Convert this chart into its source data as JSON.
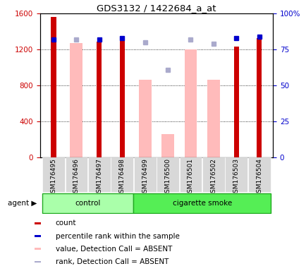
{
  "title": "GDS3132 / 1422684_a_at",
  "samples": [
    "GSM176495",
    "GSM176496",
    "GSM176497",
    "GSM176498",
    "GSM176499",
    "GSM176500",
    "GSM176501",
    "GSM176502",
    "GSM176503",
    "GSM176504"
  ],
  "count_values": [
    1560,
    null,
    1290,
    1330,
    null,
    null,
    null,
    null,
    1235,
    1330
  ],
  "absent_value_values": [
    null,
    1270,
    null,
    null,
    860,
    260,
    1200,
    860,
    null,
    null
  ],
  "percentile_rank_values": [
    82,
    null,
    82,
    83,
    null,
    null,
    null,
    null,
    83,
    84
  ],
  "absent_rank_values": [
    null,
    82,
    null,
    null,
    80,
    61,
    82,
    79,
    null,
    null
  ],
  "ylim_left": [
    0,
    1600
  ],
  "ylim_right": [
    0,
    100
  ],
  "yticks_left": [
    0,
    400,
    800,
    1200,
    1600
  ],
  "yticks_right": [
    0,
    25,
    50,
    75,
    100
  ],
  "ytick_labels_left": [
    "0",
    "400",
    "800",
    "1200",
    "1600"
  ],
  "ytick_labels_right": [
    "0",
    "25",
    "50",
    "75",
    "100%"
  ],
  "color_count": "#cc0000",
  "color_percentile": "#0000cc",
  "color_absent_value": "#ffbbbb",
  "color_absent_rank": "#aaaacc",
  "legend_items": [
    {
      "label": "count",
      "color": "#cc0000"
    },
    {
      "label": "percentile rank within the sample",
      "color": "#0000cc"
    },
    {
      "label": "value, Detection Call = ABSENT",
      "color": "#ffbbbb"
    },
    {
      "label": "rank, Detection Call = ABSENT",
      "color": "#aaaacc"
    }
  ],
  "control_color": "#aaffaa",
  "smoke_color": "#55ee55",
  "group_border_color": "#22aa22"
}
